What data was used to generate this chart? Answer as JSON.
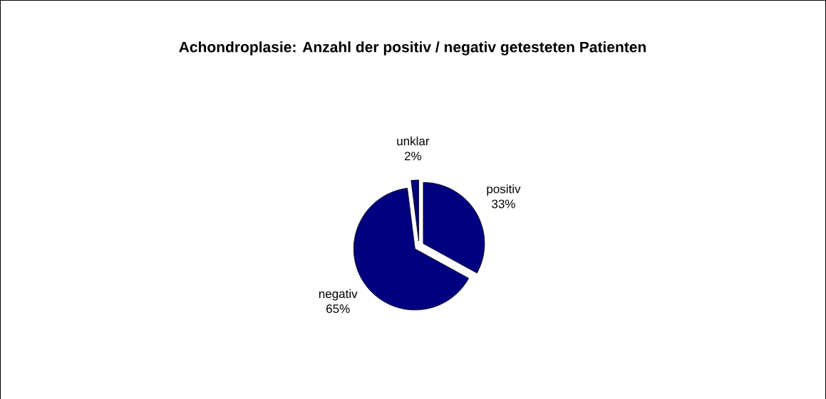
{
  "chart_data": {
    "type": "pie",
    "title": "Achondroplasie: Anzahl der positiv / negativ getesteten Patienten",
    "categories": [
      "positiv",
      "negativ",
      "unklar"
    ],
    "values": [
      33,
      65,
      2
    ],
    "value_labels": [
      "33%",
      "65%",
      "2%"
    ],
    "colors": [
      "#000080",
      "#000080",
      "#000080"
    ]
  }
}
